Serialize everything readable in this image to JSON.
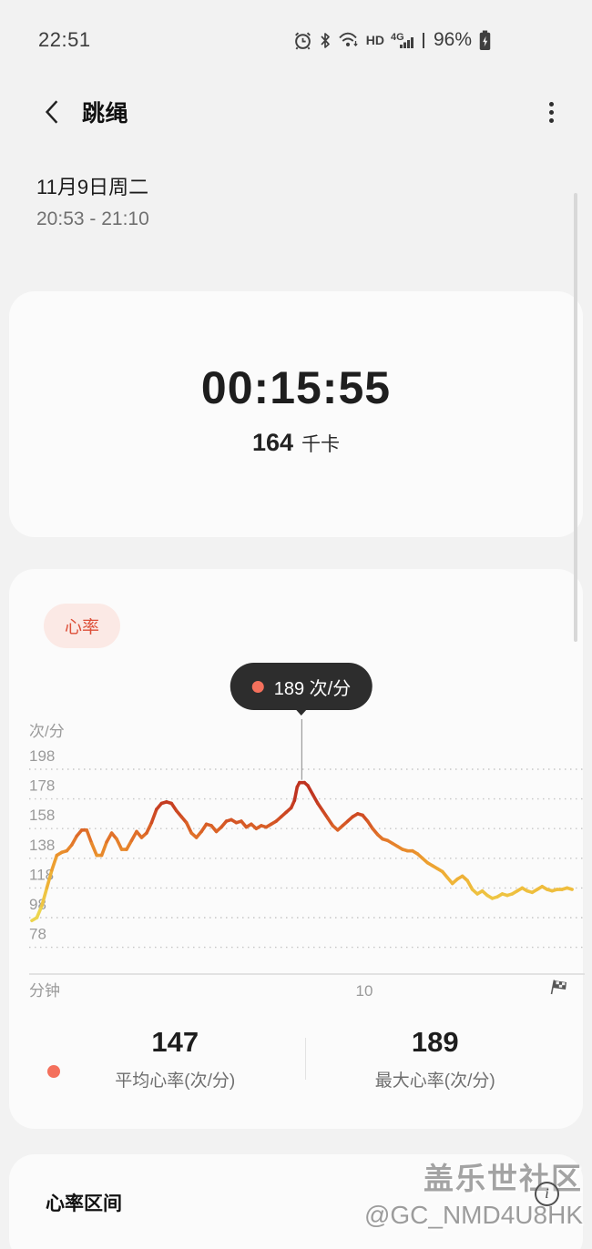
{
  "status_bar": {
    "time": "22:51",
    "battery": "96%",
    "hd_label": "HD",
    "network_label": "4G",
    "icons": [
      "alarm-icon",
      "bluetooth-icon",
      "wifi-icon",
      "hd-icon",
      "signal-4g-icon",
      "battery-charging-icon"
    ]
  },
  "header": {
    "title": "跳绳",
    "back_icon": "chevron-left",
    "menu_icon": "kebab-menu"
  },
  "session": {
    "date": "11月9日周二",
    "time_range": "20:53 - 21:10"
  },
  "summary": {
    "duration": "00:15:55",
    "calories_value": "164",
    "calories_unit": "千卡"
  },
  "heart_rate": {
    "badge": "心率",
    "tooltip": {
      "label": "189 次/分"
    },
    "stats": [
      {
        "value": "147",
        "label": "平均心率(次/分)"
      },
      {
        "value": "189",
        "label": "最大心率(次/分)"
      }
    ]
  },
  "zones_section": {
    "title": "心率区间"
  },
  "watermark": {
    "line1": "盖乐世社区",
    "line2": "@GC_NMD4U8HK",
    "info_icon": "info-icon"
  },
  "colors": {
    "accent_red": "#dd4f38",
    "badge_bg": "#fbe9e5",
    "tooltip_bg": "#2d2d2d",
    "marker_dot": "#f4705c",
    "page_bg": "#f2f2f2",
    "card_bg": "#fbfbfb"
  },
  "chart_data": {
    "type": "line",
    "title": "心率",
    "ylabel": "次/分",
    "xlabel": "分钟",
    "y_ticks": [
      198,
      178,
      158,
      138,
      118,
      98,
      78
    ],
    "x_ticks": [
      10
    ],
    "ylim": [
      70,
      210
    ],
    "xlim": [
      0,
      16.6
    ],
    "grid": "dotted-horizontal",
    "annotation": {
      "x": 8.12,
      "y": 189,
      "label": "189 次/分"
    },
    "avg_bpm": 147,
    "max_bpm": 189,
    "color_scale": [
      [
        102,
        "#ecd44e"
      ],
      [
        120,
        "#efb93a"
      ],
      [
        138,
        "#ec9a2e"
      ],
      [
        152,
        "#e2742a"
      ],
      [
        165,
        "#d14f24"
      ],
      [
        180,
        "#bf3320"
      ]
    ],
    "series": [
      {
        "name": "心率",
        "points": [
          [
            0,
            96
          ],
          [
            0.15,
            98
          ],
          [
            0.3,
            106
          ],
          [
            0.45,
            118
          ],
          [
            0.6,
            130
          ],
          [
            0.75,
            140
          ],
          [
            0.9,
            142
          ],
          [
            1.05,
            143
          ],
          [
            1.2,
            147
          ],
          [
            1.35,
            153
          ],
          [
            1.5,
            157
          ],
          [
            1.65,
            157
          ],
          [
            1.8,
            148
          ],
          [
            1.95,
            140
          ],
          [
            2.1,
            140
          ],
          [
            2.25,
            149
          ],
          [
            2.4,
            155
          ],
          [
            2.55,
            151
          ],
          [
            2.7,
            144
          ],
          [
            2.85,
            144
          ],
          [
            3,
            150
          ],
          [
            3.15,
            156
          ],
          [
            3.3,
            152
          ],
          [
            3.45,
            155
          ],
          [
            3.6,
            162
          ],
          [
            3.75,
            171
          ],
          [
            3.9,
            175
          ],
          [
            4.05,
            176
          ],
          [
            4.2,
            175
          ],
          [
            4.35,
            170
          ],
          [
            4.5,
            166
          ],
          [
            4.65,
            162
          ],
          [
            4.8,
            155
          ],
          [
            4.95,
            152
          ],
          [
            5.1,
            156
          ],
          [
            5.25,
            161
          ],
          [
            5.4,
            160
          ],
          [
            5.55,
            156
          ],
          [
            5.7,
            159
          ],
          [
            5.85,
            163
          ],
          [
            6,
            164
          ],
          [
            6.15,
            162
          ],
          [
            6.3,
            163
          ],
          [
            6.45,
            159
          ],
          [
            6.6,
            161
          ],
          [
            6.75,
            158
          ],
          [
            6.9,
            160
          ],
          [
            7.05,
            159
          ],
          [
            7.2,
            161
          ],
          [
            7.35,
            163
          ],
          [
            7.5,
            166
          ],
          [
            7.65,
            169
          ],
          [
            7.8,
            172
          ],
          [
            7.9,
            177
          ],
          [
            7.98,
            186
          ],
          [
            8.05,
            189
          ],
          [
            8.2,
            189
          ],
          [
            8.3,
            187
          ],
          [
            8.45,
            181
          ],
          [
            8.6,
            175
          ],
          [
            8.75,
            170
          ],
          [
            8.9,
            165
          ],
          [
            9.05,
            160
          ],
          [
            9.2,
            157
          ],
          [
            9.35,
            160
          ],
          [
            9.5,
            163
          ],
          [
            9.65,
            166
          ],
          [
            9.8,
            168
          ],
          [
            9.95,
            167
          ],
          [
            10.1,
            163
          ],
          [
            10.25,
            158
          ],
          [
            10.4,
            154
          ],
          [
            10.55,
            151
          ],
          [
            10.7,
            150
          ],
          [
            10.85,
            148
          ],
          [
            11,
            146
          ],
          [
            11.15,
            144
          ],
          [
            11.3,
            143
          ],
          [
            11.45,
            143
          ],
          [
            11.6,
            141
          ],
          [
            11.75,
            138
          ],
          [
            11.9,
            135
          ],
          [
            12.05,
            133
          ],
          [
            12.2,
            131
          ],
          [
            12.35,
            129
          ],
          [
            12.5,
            125
          ],
          [
            12.65,
            121
          ],
          [
            12.8,
            124
          ],
          [
            12.95,
            126
          ],
          [
            13.1,
            123
          ],
          [
            13.25,
            117
          ],
          [
            13.4,
            114
          ],
          [
            13.55,
            116
          ],
          [
            13.7,
            113
          ],
          [
            13.85,
            111
          ],
          [
            14,
            112
          ],
          [
            14.15,
            114
          ],
          [
            14.3,
            113
          ],
          [
            14.45,
            114
          ],
          [
            14.6,
            116
          ],
          [
            14.75,
            118
          ],
          [
            14.9,
            116
          ],
          [
            15.05,
            115
          ],
          [
            15.2,
            117
          ],
          [
            15.35,
            119
          ],
          [
            15.5,
            117
          ],
          [
            15.65,
            116
          ],
          [
            15.8,
            117
          ],
          [
            15.95,
            117
          ],
          [
            16.1,
            118
          ],
          [
            16.25,
            117
          ]
        ]
      }
    ]
  }
}
